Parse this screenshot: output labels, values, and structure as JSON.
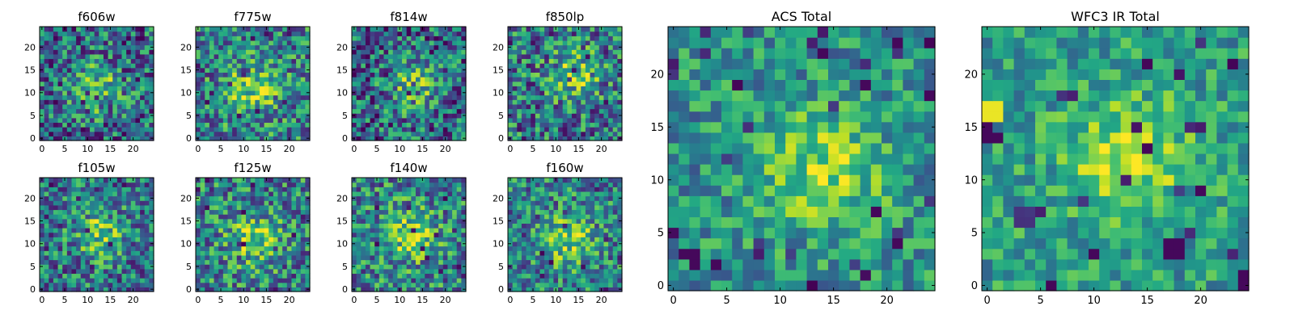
{
  "chart_data": [
    {
      "type": "heatmap",
      "title": "f606w",
      "xticks": [
        "0",
        "5",
        "10",
        "15",
        "20"
      ],
      "yticks": [
        "0",
        "5",
        "10",
        "15",
        "20"
      ],
      "xlim": [
        -0.5,
        24.5
      ],
      "ylim": [
        -0.5,
        24.5
      ],
      "grid_size": 25,
      "seed": 11,
      "bias": 0.35,
      "blob_center": [
        12,
        11
      ],
      "noise": 0.75,
      "colormap": "viridis"
    },
    {
      "type": "heatmap",
      "title": "f775w",
      "xticks": [
        "0",
        "5",
        "10",
        "15",
        "20"
      ],
      "yticks": [
        "0",
        "5",
        "10",
        "15",
        "20"
      ],
      "xlim": [
        -0.5,
        24.5
      ],
      "ylim": [
        -0.5,
        24.5
      ],
      "grid_size": 25,
      "seed": 23,
      "bias": 0.45,
      "blob_center": [
        12,
        11
      ],
      "noise": 0.7,
      "colormap": "viridis"
    },
    {
      "type": "heatmap",
      "title": "f814w",
      "xticks": [
        "0",
        "5",
        "10",
        "15",
        "20"
      ],
      "yticks": [
        "0",
        "5",
        "10",
        "15",
        "20"
      ],
      "xlim": [
        -0.5,
        24.5
      ],
      "ylim": [
        -0.5,
        24.5
      ],
      "grid_size": 25,
      "seed": 37,
      "bias": 0.35,
      "blob_center": [
        13,
        12
      ],
      "noise": 0.75,
      "colormap": "viridis"
    },
    {
      "type": "heatmap",
      "title": "f850lp",
      "xticks": [
        "0",
        "5",
        "10",
        "15",
        "20"
      ],
      "yticks": [
        "0",
        "5",
        "10",
        "15",
        "20"
      ],
      "xlim": [
        -0.5,
        24.5
      ],
      "ylim": [
        -0.5,
        24.5
      ],
      "grid_size": 25,
      "seed": 41,
      "bias": 0.4,
      "blob_center": [
        14,
        14
      ],
      "noise": 0.75,
      "colormap": "viridis"
    },
    {
      "type": "heatmap",
      "title": "f105w",
      "xticks": [
        "0",
        "5",
        "10",
        "15",
        "20"
      ],
      "yticks": [
        "0",
        "5",
        "10",
        "15",
        "20"
      ],
      "xlim": [
        -0.5,
        24.5
      ],
      "ylim": [
        -0.5,
        24.5
      ],
      "grid_size": 25,
      "seed": 53,
      "bias": 0.4,
      "blob_center": [
        13,
        12
      ],
      "noise": 0.7,
      "colormap": "viridis"
    },
    {
      "type": "heatmap",
      "title": "f125w",
      "xticks": [
        "0",
        "5",
        "10",
        "15",
        "20"
      ],
      "yticks": [
        "0",
        "5",
        "10",
        "15",
        "20"
      ],
      "xlim": [
        -0.5,
        24.5
      ],
      "ylim": [
        -0.5,
        24.5
      ],
      "grid_size": 25,
      "seed": 67,
      "bias": 0.45,
      "blob_center": [
        12,
        11
      ],
      "noise": 0.7,
      "colormap": "viridis"
    },
    {
      "type": "heatmap",
      "title": "f140w",
      "xticks": [
        "0",
        "5",
        "10",
        "15",
        "20"
      ],
      "yticks": [
        "0",
        "5",
        "10",
        "15",
        "20"
      ],
      "xlim": [
        -0.5,
        24.5
      ],
      "ylim": [
        -0.5,
        24.5
      ],
      "grid_size": 25,
      "seed": 79,
      "bias": 0.45,
      "blob_center": [
        12,
        12
      ],
      "noise": 0.7,
      "colormap": "viridis"
    },
    {
      "type": "heatmap",
      "title": "f160w",
      "xticks": [
        "0",
        "5",
        "10",
        "15",
        "20"
      ],
      "yticks": [
        "0",
        "5",
        "10",
        "15",
        "20"
      ],
      "xlim": [
        -0.5,
        24.5
      ],
      "ylim": [
        -0.5,
        24.5
      ],
      "grid_size": 25,
      "seed": 83,
      "bias": 0.45,
      "blob_center": [
        13,
        11
      ],
      "noise": 0.65,
      "colormap": "viridis"
    },
    {
      "type": "heatmap",
      "title": "ACS Total",
      "xticks": [
        "0",
        "5",
        "10",
        "15",
        "20"
      ],
      "yticks": [
        "0",
        "5",
        "10",
        "15",
        "20"
      ],
      "xlim": [
        -0.5,
        24.5
      ],
      "ylim": [
        -0.5,
        24.5
      ],
      "grid_size": 25,
      "seed": 97,
      "bias": 0.5,
      "blob_center": [
        14,
        11
      ],
      "noise": 0.5,
      "colormap": "viridis",
      "dark_cells": [
        [
          1,
          3
        ],
        [
          2,
          2
        ],
        [
          2,
          3
        ],
        [
          4,
          2
        ],
        [
          21,
          23
        ],
        [
          14,
          22
        ],
        [
          19,
          7
        ],
        [
          21,
          4
        ],
        [
          24,
          18
        ],
        [
          18,
          19
        ]
      ]
    },
    {
      "type": "heatmap",
      "title": "WFC3 IR Total",
      "xticks": [
        "0",
        "5",
        "10",
        "15",
        "20"
      ],
      "yticks": [
        "0",
        "5",
        "10",
        "15",
        "20"
      ],
      "xlim": [
        -0.5,
        24.5
      ],
      "ylim": [
        -0.5,
        24.5
      ],
      "grid_size": 25,
      "seed": 101,
      "bias": 0.55,
      "blob_center": [
        13,
        12
      ],
      "noise": 0.45,
      "colormap": "viridis",
      "dark_cells": [
        [
          0,
          14
        ],
        [
          1,
          14
        ],
        [
          0,
          15
        ],
        [
          17,
          3
        ],
        [
          18,
          3
        ],
        [
          17,
          4
        ],
        [
          18,
          4
        ],
        [
          20,
          9
        ],
        [
          24,
          0
        ],
        [
          24,
          1
        ],
        [
          10,
          3
        ]
      ],
      "bright_cells": [
        [
          0,
          16
        ],
        [
          1,
          16
        ],
        [
          0,
          17
        ],
        [
          1,
          17
        ]
      ]
    }
  ]
}
